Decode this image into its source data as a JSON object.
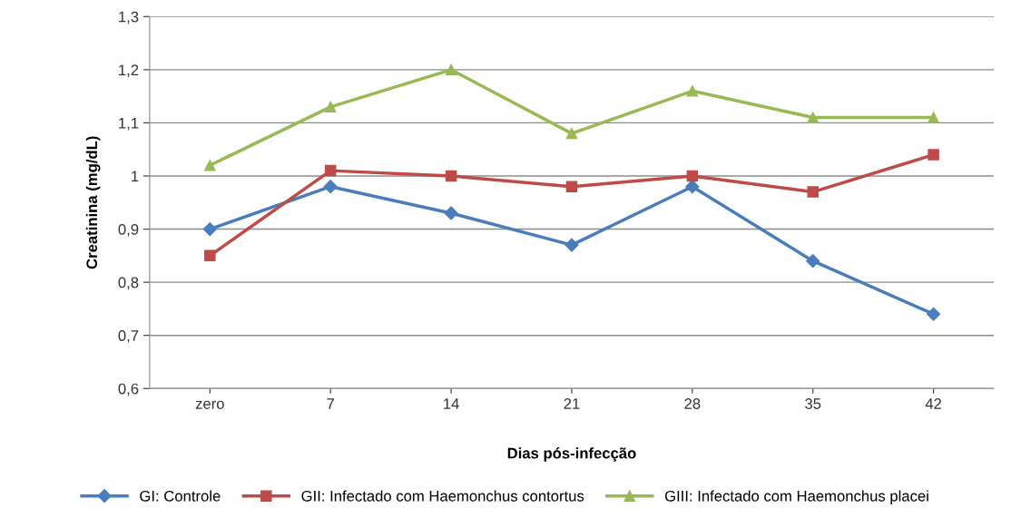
{
  "chart_data": {
    "type": "line",
    "xlabel": "Dias pós-infecção",
    "ylabel": "Creatinina (mg/dL)",
    "categories": [
      "zero",
      "7",
      "14",
      "21",
      "28",
      "35",
      "42"
    ],
    "series": [
      {
        "name": "GI: Controle",
        "color": "#4a7ebb",
        "marker": "diamond",
        "values": [
          0.9,
          0.98,
          0.93,
          0.87,
          0.98,
          0.84,
          0.74
        ]
      },
      {
        "name": "GII: Infectado com Haemonchus contortus",
        "color": "#be4b48",
        "marker": "square",
        "values": [
          0.85,
          1.01,
          1.0,
          0.98,
          1.0,
          0.97,
          1.04
        ]
      },
      {
        "name": "GIII: Infectado com Haemonchus placei",
        "color": "#98b954",
        "marker": "triangle",
        "values": [
          1.02,
          1.13,
          1.2,
          1.08,
          1.16,
          1.11,
          1.11
        ]
      }
    ],
    "ylim": [
      0.6,
      1.3
    ],
    "yticks": [
      {
        "value": 0.6,
        "label": "0,6"
      },
      {
        "value": 0.7,
        "label": "0,7"
      },
      {
        "value": 0.8,
        "label": "0,8"
      },
      {
        "value": 0.9,
        "label": "0,9"
      },
      {
        "value": 1.0,
        "label": "1"
      },
      {
        "value": 1.1,
        "label": "1,1"
      },
      {
        "value": 1.2,
        "label": "1,2"
      },
      {
        "value": 1.3,
        "label": "1,3"
      }
    ],
    "grid": "y",
    "legend": "bottom",
    "line_style": "solid"
  }
}
